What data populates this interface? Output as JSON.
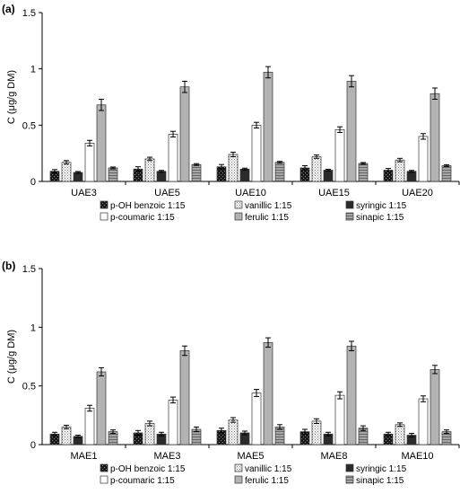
{
  "colors": {
    "p_oh_benzoic": "#222222",
    "vanillic": "#d9d9d9",
    "syringic": "#2b2b2b",
    "p_coumaric": "#ffffff",
    "ferulic": "#b3b3b3",
    "sinapic": "#8c8c8c"
  },
  "chart_data": [
    {
      "panel_label": "(a)",
      "type": "bar",
      "ylabel": "C (μg/g DM)",
      "ylim": [
        0,
        1.5
      ],
      "yticks": [
        "0",
        "0.5",
        "1",
        "1.5"
      ],
      "ytick_values": [
        0,
        0.5,
        1,
        1.5
      ],
      "categories": [
        "UAE3",
        "UAE5",
        "UAE10",
        "UAE15",
        "UAE20"
      ],
      "legend_position": "bottom",
      "series": [
        {
          "name": "p-OH benzoic 1:15",
          "values": [
            0.09,
            0.11,
            0.13,
            0.12,
            0.1
          ],
          "errors": [
            0.015,
            0.02,
            0.02,
            0.02,
            0.015
          ]
        },
        {
          "name": "vanillic 1:15",
          "values": [
            0.17,
            0.2,
            0.24,
            0.22,
            0.19
          ],
          "errors": [
            0.015,
            0.015,
            0.02,
            0.015,
            0.015
          ]
        },
        {
          "name": "syringic 1:15",
          "values": [
            0.08,
            0.09,
            0.11,
            0.1,
            0.09
          ],
          "errors": [
            0.008,
            0.008,
            0.008,
            0.008,
            0.008
          ]
        },
        {
          "name": "p-coumaric 1:15",
          "values": [
            0.34,
            0.42,
            0.5,
            0.46,
            0.4
          ],
          "errors": [
            0.025,
            0.025,
            0.025,
            0.025,
            0.025
          ]
        },
        {
          "name": "ferulic 1:15",
          "values": [
            0.68,
            0.84,
            0.97,
            0.89,
            0.78
          ],
          "errors": [
            0.05,
            0.05,
            0.05,
            0.05,
            0.05
          ]
        },
        {
          "name": "sinapic 1:15",
          "values": [
            0.12,
            0.15,
            0.17,
            0.16,
            0.14
          ],
          "errors": [
            0.008,
            0.008,
            0.008,
            0.008,
            0.008
          ]
        }
      ]
    },
    {
      "panel_label": "(b)",
      "type": "bar",
      "ylabel": "C (μg/g DM)",
      "ylim": [
        0,
        1.5
      ],
      "yticks": [
        "0",
        "0.5",
        "1",
        "1.5"
      ],
      "ytick_values": [
        0,
        0.5,
        1,
        1.5
      ],
      "categories": [
        "MAE1",
        "MAE3",
        "MAE5",
        "MAE8",
        "MAE10"
      ],
      "legend_position": "bottom",
      "series": [
        {
          "name": "p-OH benzoic 1:15",
          "values": [
            0.09,
            0.1,
            0.12,
            0.11,
            0.09
          ],
          "errors": [
            0.015,
            0.02,
            0.02,
            0.02,
            0.015
          ]
        },
        {
          "name": "vanillic 1:15",
          "values": [
            0.15,
            0.18,
            0.21,
            0.2,
            0.17
          ],
          "errors": [
            0.015,
            0.02,
            0.02,
            0.02,
            0.015
          ]
        },
        {
          "name": "syringic 1:15",
          "values": [
            0.07,
            0.09,
            0.1,
            0.09,
            0.08
          ],
          "errors": [
            0.01,
            0.015,
            0.015,
            0.015,
            0.015
          ]
        },
        {
          "name": "p-coumaric 1:15",
          "values": [
            0.31,
            0.38,
            0.44,
            0.42,
            0.39
          ],
          "errors": [
            0.025,
            0.025,
            0.03,
            0.03,
            0.025
          ]
        },
        {
          "name": "ferulic 1:15",
          "values": [
            0.62,
            0.8,
            0.87,
            0.84,
            0.64
          ],
          "errors": [
            0.035,
            0.04,
            0.04,
            0.04,
            0.035
          ]
        },
        {
          "name": "sinapic 1:15",
          "values": [
            0.11,
            0.13,
            0.15,
            0.14,
            0.11
          ],
          "errors": [
            0.015,
            0.02,
            0.02,
            0.02,
            0.015
          ]
        }
      ]
    }
  ]
}
